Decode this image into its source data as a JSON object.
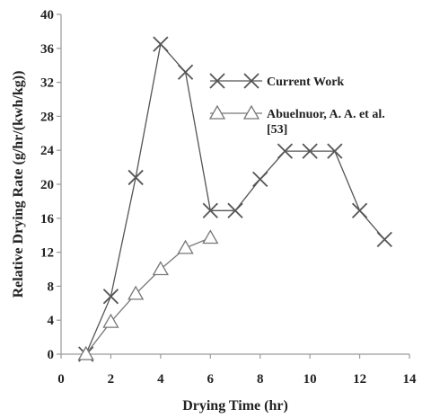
{
  "chart_data": {
    "type": "line",
    "title": "",
    "xlabel": "Drying Time (hr)",
    "ylabel": "Relative Drying Rate (g/hr/(kwh/kg))",
    "xlim": [
      0,
      14
    ],
    "ylim": [
      0,
      40
    ],
    "xticks": [
      0,
      2,
      4,
      6,
      8,
      10,
      12,
      14
    ],
    "yticks": [
      0,
      4,
      8,
      12,
      16,
      20,
      24,
      28,
      32,
      36,
      40
    ],
    "grid": false,
    "legend_position": "top-right",
    "series": [
      {
        "name": "Current Work",
        "marker": "x",
        "color": "#555555",
        "x": [
          1,
          2,
          3,
          4,
          5,
          6,
          7,
          8,
          9,
          10,
          11,
          12,
          13
        ],
        "y": [
          0,
          6.8,
          20.8,
          36.5,
          33.2,
          16.9,
          16.9,
          20.6,
          23.9,
          23.9,
          23.9,
          16.9,
          13.5
        ]
      },
      {
        "name": "Abuelnuor, A. A. et al. [53]",
        "marker": "triangle",
        "color": "#777777",
        "x": [
          1,
          2,
          3,
          4,
          5,
          6
        ],
        "y": [
          0,
          3.8,
          7.1,
          10.0,
          12.5,
          13.7
        ]
      }
    ]
  }
}
